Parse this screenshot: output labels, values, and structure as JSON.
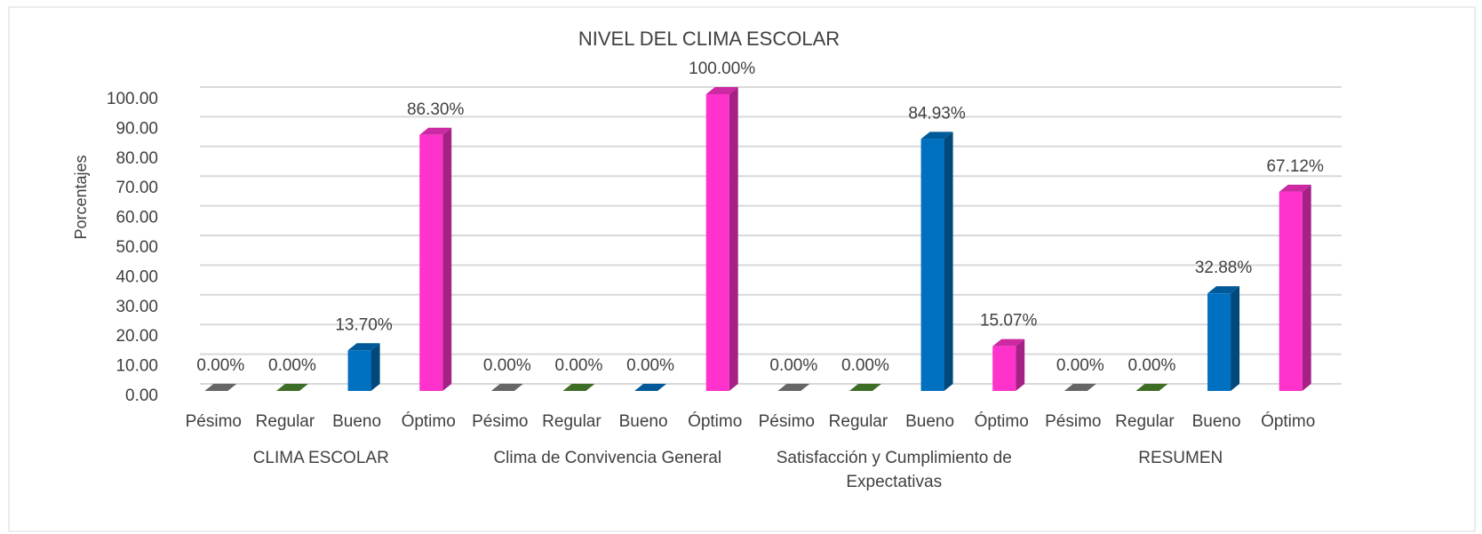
{
  "chart_data": {
    "type": "bar3d",
    "title": "NIVEL DEL CLIMA ESCOLAR",
    "y_label": "Porcentajes",
    "groups": [
      "CLIMA ESCOLAR",
      "Clima de Convivencia General",
      "Satisfacción y Cumplimiento de Expectativas",
      "RESUMEN"
    ],
    "categories": [
      "Pésimo",
      "Regular",
      "Bueno",
      "Óptimo",
      "Pésimo",
      "Regular",
      "Bueno",
      "Óptimo",
      "Pésimo",
      "Regular",
      "Bueno",
      "Óptimo",
      "Pésimo",
      "Regular",
      "Bueno",
      "Óptimo"
    ],
    "values": [
      0,
      0,
      13.7,
      86.3,
      0,
      0,
      0,
      100,
      0,
      0,
      84.93,
      15.07,
      0,
      0,
      32.88,
      67.12
    ],
    "value_labels": [
      "0.00%",
      "0.00%",
      "13.70%",
      "86.30%",
      "0.00%",
      "0.00%",
      "0.00%",
      "100.00%",
      "0.00%",
      "0.00%",
      "84.93%",
      "15.07%",
      "0.00%",
      "0.00%",
      "32.88%",
      "67.12%"
    ],
    "colors": [
      "#7f7f7f",
      "#4e8a2e",
      "#0070c0",
      "#ff33cc",
      "#7f7f7f",
      "#4e8a2e",
      "#0070c0",
      "#ff33cc",
      "#7f7f7f",
      "#4e8a2e",
      "#0070c0",
      "#ff33cc",
      "#7f7f7f",
      "#4e8a2e",
      "#0070c0",
      "#ff33cc"
    ],
    "ylim": [
      0,
      100
    ],
    "yticks": [
      {
        "value": 0,
        "label": "0.00"
      },
      {
        "value": 10,
        "label": "10.00"
      },
      {
        "value": 20,
        "label": "20.00"
      },
      {
        "value": 30,
        "label": "30.00"
      },
      {
        "value": 40,
        "label": "40.00"
      },
      {
        "value": 50,
        "label": "50.00"
      },
      {
        "value": 60,
        "label": "60.00"
      },
      {
        "value": 70,
        "label": "70.00"
      },
      {
        "value": 80,
        "label": "80.00"
      },
      {
        "value": 90,
        "label": "90.00"
      },
      {
        "value": 100,
        "label": "100.00"
      }
    ],
    "grid": true
  }
}
